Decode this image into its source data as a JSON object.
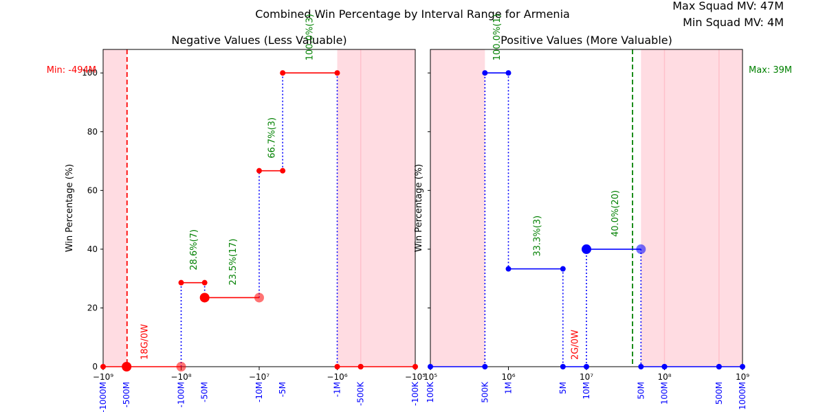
{
  "suptitle": "Combined Win Percentage by Interval Range for Armenia",
  "corner": {
    "max_label": "Max Squad MV: 47M",
    "min_label": "Min Squad MV: 4M"
  },
  "colors": {
    "neg_series": "#ff0000",
    "pos_series": "#0000ff",
    "pct_annotation": "#008000",
    "count_annotation": "#ff0000",
    "highlight": "#ffc0cb",
    "tick_blue": "#0000ff"
  },
  "chart_data": [
    {
      "type": "line",
      "title": "Negative Values (Less Valuable)",
      "ylabel": "Win Percentage (%)",
      "xscale": "symlog",
      "xlim": [
        -1000000000,
        -100000
      ],
      "ylim": [
        0,
        108
      ],
      "ytick_values": [
        0,
        20,
        40,
        60,
        80,
        100
      ],
      "major_tick_labels": [
        "−10⁹",
        "−10⁸",
        "−10⁷",
        "−10⁶",
        "−10⁵"
      ],
      "major_tick_values": [
        -1000000000,
        -100000000,
        -10000000,
        -1000000,
        -100000
      ],
      "custom_tick_labels": [
        "-1000M",
        "-500M",
        "-100M",
        "-50M",
        "-10M",
        "-5M",
        "-1M",
        "-500K",
        "-100K"
      ],
      "custom_tick_values": [
        -1000000000,
        -500000000,
        -100000000,
        -50000000,
        -10000000,
        -5000000,
        -1000000,
        -500000,
        -100000
      ],
      "shaded_regions": [
        [
          -1000000000,
          -500000000
        ],
        [
          -1000000,
          -100000
        ]
      ],
      "reference_line": {
        "x": -494000000,
        "label": "Min: -494M"
      },
      "segments": [
        {
          "x0": -1000000000,
          "x1": -500000000,
          "y": 0,
          "big": false
        },
        {
          "x0": -500000000,
          "x1": -100000000,
          "y": 0,
          "big": true
        },
        {
          "x0": -100000000,
          "x1": -50000000,
          "y": 28.6,
          "big": false
        },
        {
          "x0": -50000000,
          "x1": -10000000,
          "y": 23.5,
          "big": true
        },
        {
          "x0": -10000000,
          "x1": -5000000,
          "y": 66.7,
          "big": false
        },
        {
          "x0": -5000000,
          "x1": -1000000,
          "y": 100,
          "big": false
        },
        {
          "x0": -1000000,
          "x1": -500000,
          "y": 0,
          "big": false
        },
        {
          "x0": -500000,
          "x1": -100000,
          "y": 0,
          "big": false
        }
      ],
      "annotations": [
        {
          "x": -300000000,
          "y": 0,
          "text": "18G/0W",
          "kind": "count"
        },
        {
          "x": -70000000,
          "y": 28.6,
          "text": "28.6%(7)",
          "kind": "pct"
        },
        {
          "x": -22000000,
          "y": 23.5,
          "text": "23.5%(17)",
          "kind": "pct"
        },
        {
          "x": -7000000,
          "y": 66.7,
          "text": "66.7%(3)",
          "kind": "pct"
        },
        {
          "x": -2300000,
          "y": 100,
          "text": "100.0%(3)",
          "kind": "pct"
        }
      ]
    },
    {
      "type": "line",
      "title": "Positive Values (More Valuable)",
      "ylabel": "Win Percentage (%)",
      "xscale": "symlog",
      "xlim": [
        100000,
        1000000000
      ],
      "ylim": [
        0,
        108
      ],
      "ytick_values": [
        0,
        20,
        40,
        60,
        80,
        100
      ],
      "major_tick_labels": [
        "10⁵",
        "10⁶",
        "10⁷",
        "10⁸",
        "10⁹"
      ],
      "major_tick_values": [
        100000,
        1000000,
        10000000,
        100000000,
        1000000000
      ],
      "custom_tick_labels": [
        "100K",
        "500K",
        "1M",
        "5M",
        "10M",
        "50M",
        "100M",
        "500M",
        "1000M"
      ],
      "custom_tick_values": [
        100000,
        500000,
        1000000,
        5000000,
        10000000,
        50000000,
        100000000,
        500000000,
        1000000000
      ],
      "shaded_regions": [
        [
          100000,
          500000
        ],
        [
          50000000,
          1000000000
        ]
      ],
      "reference_line": {
        "x": 39000000,
        "label": "Max: 39M"
      },
      "segments": [
        {
          "x0": 100000,
          "x1": 500000,
          "y": 0,
          "big": false
        },
        {
          "x0": 500000,
          "x1": 1000000,
          "y": 100,
          "big": false
        },
        {
          "x0": 1000000,
          "x1": 5000000,
          "y": 33.3,
          "big": false
        },
        {
          "x0": 5000000,
          "x1": 10000000,
          "y": 0,
          "big": false
        },
        {
          "x0": 10000000,
          "x1": 50000000,
          "y": 40,
          "big": true
        },
        {
          "x0": 50000000,
          "x1": 100000000,
          "y": 0,
          "big": false
        },
        {
          "x0": 100000000,
          "x1": 500000000,
          "y": 0,
          "big": false
        },
        {
          "x0": 500000000,
          "x1": 1000000000,
          "y": 0,
          "big": false
        }
      ],
      "annotations": [
        {
          "x": 700000,
          "y": 100,
          "text": "100.0%(1)",
          "kind": "pct"
        },
        {
          "x": 2300000,
          "y": 33.3,
          "text": "33.3%(3)",
          "kind": "pct"
        },
        {
          "x": 7000000,
          "y": 0,
          "text": "2G/0W",
          "kind": "count"
        },
        {
          "x": 23000000,
          "y": 40,
          "text": "40.0%(20)",
          "kind": "pct"
        }
      ]
    }
  ]
}
